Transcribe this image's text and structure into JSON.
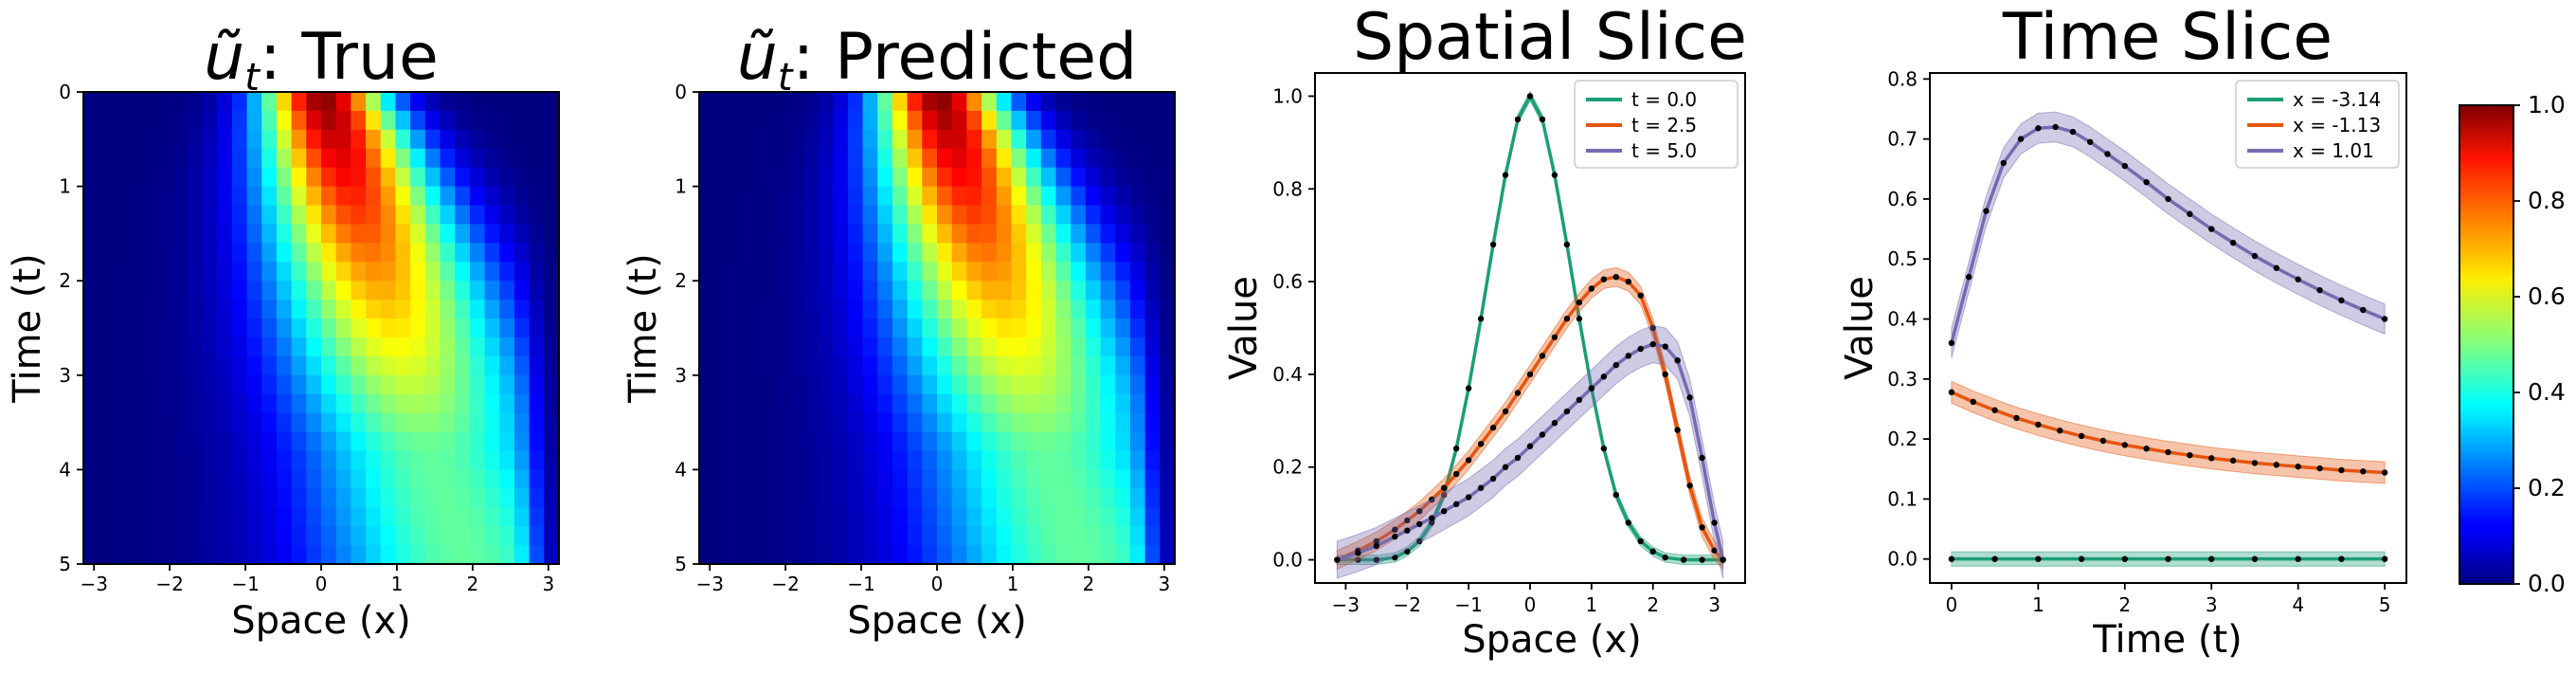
{
  "chart_data": [
    {
      "type": "heatmap",
      "title_symbol": "ũ",
      "title_sub": "t",
      "title_suffix": ": True",
      "xlabel": "Space (x)",
      "ylabel": "Time (t)",
      "xlim": [
        -3.14,
        3.14
      ],
      "ylim": [
        0,
        5
      ],
      "xticks": [
        "−3",
        "−2",
        "−1",
        "0",
        "1",
        "2",
        "3"
      ],
      "xtick_values": [
        -3,
        -2,
        -1,
        0,
        1,
        2,
        3
      ],
      "yticks": [
        "0",
        "1",
        "2",
        "3",
        "4",
        "5"
      ],
      "ytick_values": [
        0,
        1,
        2,
        3,
        4,
        5
      ],
      "grid_cols": 32,
      "grid_rows": 25,
      "colormap": "jet",
      "peak_value": 1.0
    },
    {
      "type": "heatmap",
      "title_symbol": "ũ",
      "title_sub": "t",
      "title_suffix": ": Predicted",
      "xlabel": "Space (x)",
      "ylabel": "Time (t)",
      "xlim": [
        -3.14,
        3.14
      ],
      "ylim": [
        0,
        5
      ],
      "xticks": [
        "−3",
        "−2",
        "−1",
        "0",
        "1",
        "2",
        "3"
      ],
      "xtick_values": [
        -3,
        -2,
        -1,
        0,
        1,
        2,
        3
      ],
      "yticks": [
        "0",
        "1",
        "2",
        "3",
        "4",
        "5"
      ],
      "ytick_values": [
        0,
        1,
        2,
        3,
        4,
        5
      ],
      "grid_cols": 32,
      "grid_rows": 25,
      "colormap": "jet",
      "peak_value": 1.0
    },
    {
      "type": "line",
      "title": "Spatial Slice",
      "xlabel": "Space (x)",
      "ylabel": "Value",
      "xlim": [
        -3.5,
        3.5
      ],
      "ylim": [
        -0.05,
        1.05
      ],
      "xticks": [
        "−3",
        "−2",
        "−1",
        "0",
        "1",
        "2",
        "3"
      ],
      "xtick_values": [
        -3,
        -2,
        -1,
        0,
        1,
        2,
        3
      ],
      "yticks": [
        "0.0",
        "0.2",
        "0.4",
        "0.6",
        "0.8",
        "1.0"
      ],
      "ytick_values": [
        0,
        0.2,
        0.4,
        0.6,
        0.8,
        1.0
      ],
      "legend_position": "top-right",
      "series": [
        {
          "name": "t = 0.0",
          "color": "#1b9e77",
          "band": 0.01,
          "x": [
            -3.14,
            -2.8,
            -2.5,
            -2.2,
            -2.0,
            -1.8,
            -1.6,
            -1.4,
            -1.2,
            -1.0,
            -0.8,
            -0.6,
            -0.4,
            -0.2,
            0.0,
            0.2,
            0.4,
            0.6,
            0.8,
            1.0,
            1.2,
            1.4,
            1.6,
            1.8,
            2.0,
            2.2,
            2.5,
            2.8,
            3.14
          ],
          "y": [
            0.0,
            0.0,
            0.0,
            0.005,
            0.018,
            0.04,
            0.08,
            0.14,
            0.24,
            0.37,
            0.52,
            0.68,
            0.83,
            0.95,
            1.0,
            0.95,
            0.83,
            0.68,
            0.52,
            0.37,
            0.24,
            0.14,
            0.08,
            0.04,
            0.018,
            0.005,
            0.0,
            0.0,
            0.0
          ]
        },
        {
          "name": "t = 2.5",
          "color": "#e6550d",
          "band": 0.02,
          "x": [
            -3.14,
            -2.8,
            -2.5,
            -2.2,
            -2.0,
            -1.8,
            -1.6,
            -1.4,
            -1.2,
            -1.0,
            -0.8,
            -0.6,
            -0.4,
            -0.2,
            0.0,
            0.2,
            0.4,
            0.6,
            0.8,
            1.0,
            1.2,
            1.4,
            1.6,
            1.8,
            2.0,
            2.2,
            2.4,
            2.6,
            2.8,
            3.0,
            3.14
          ],
          "y": [
            0.0,
            0.02,
            0.04,
            0.065,
            0.085,
            0.105,
            0.13,
            0.155,
            0.185,
            0.215,
            0.25,
            0.285,
            0.32,
            0.36,
            0.4,
            0.44,
            0.48,
            0.52,
            0.555,
            0.585,
            0.605,
            0.61,
            0.6,
            0.57,
            0.5,
            0.4,
            0.28,
            0.16,
            0.07,
            0.02,
            0.0
          ]
        },
        {
          "name": "t = 5.0",
          "color": "#756bb1",
          "band": 0.04,
          "x": [
            -3.14,
            -2.8,
            -2.5,
            -2.2,
            -2.0,
            -1.8,
            -1.6,
            -1.4,
            -1.2,
            -1.0,
            -0.8,
            -0.6,
            -0.4,
            -0.2,
            0.0,
            0.2,
            0.4,
            0.6,
            0.8,
            1.0,
            1.2,
            1.4,
            1.6,
            1.8,
            2.0,
            2.2,
            2.4,
            2.6,
            2.8,
            3.0,
            3.14
          ],
          "y": [
            0.0,
            0.015,
            0.03,
            0.05,
            0.063,
            0.077,
            0.09,
            0.105,
            0.12,
            0.135,
            0.155,
            0.175,
            0.2,
            0.22,
            0.245,
            0.27,
            0.295,
            0.32,
            0.345,
            0.37,
            0.395,
            0.42,
            0.44,
            0.455,
            0.465,
            0.46,
            0.43,
            0.35,
            0.22,
            0.08,
            0.0
          ]
        }
      ]
    },
    {
      "type": "line",
      "title": "Time Slice",
      "xlabel": "Time (t)",
      "ylabel": "Value",
      "xlim": [
        -0.25,
        5.25
      ],
      "ylim": [
        -0.04,
        0.81
      ],
      "xticks": [
        "0",
        "1",
        "2",
        "3",
        "4",
        "5"
      ],
      "xtick_values": [
        0,
        1,
        2,
        3,
        4,
        5
      ],
      "yticks": [
        "0.0",
        "0.1",
        "0.2",
        "0.3",
        "0.4",
        "0.5",
        "0.6",
        "0.7",
        "0.8"
      ],
      "ytick_values": [
        0,
        0.1,
        0.2,
        0.3,
        0.4,
        0.5,
        0.6,
        0.7,
        0.8
      ],
      "legend_position": "top-right",
      "series": [
        {
          "name": "x = -3.14",
          "color": "#1b9e77",
          "band": 0.012,
          "x": [
            0,
            0.5,
            1,
            1.5,
            2,
            2.5,
            3,
            3.5,
            4,
            4.5,
            5
          ],
          "y": [
            0.0,
            0.0,
            0.0,
            0.0,
            0.0,
            0.0,
            0.0,
            0.0,
            0.0,
            0.0,
            0.0
          ]
        },
        {
          "name": "x = -1.13",
          "color": "#e6550d",
          "band": 0.018,
          "x": [
            0,
            0.25,
            0.5,
            0.75,
            1.0,
            1.25,
            1.5,
            1.75,
            2.0,
            2.25,
            2.5,
            2.75,
            3.0,
            3.25,
            3.5,
            3.75,
            4.0,
            4.25,
            4.5,
            4.75,
            5.0
          ],
          "y": [
            0.278,
            0.262,
            0.248,
            0.235,
            0.224,
            0.214,
            0.205,
            0.197,
            0.19,
            0.184,
            0.178,
            0.173,
            0.168,
            0.164,
            0.16,
            0.157,
            0.154,
            0.151,
            0.148,
            0.146,
            0.144
          ]
        },
        {
          "name": "x = 1.01",
          "color": "#756bb1",
          "band": 0.025,
          "x": [
            0,
            0.2,
            0.4,
            0.6,
            0.8,
            1.0,
            1.2,
            1.4,
            1.6,
            1.8,
            2.0,
            2.25,
            2.5,
            2.75,
            3.0,
            3.25,
            3.5,
            3.75,
            4.0,
            4.25,
            4.5,
            4.75,
            5.0
          ],
          "y": [
            0.36,
            0.47,
            0.58,
            0.66,
            0.7,
            0.718,
            0.72,
            0.712,
            0.695,
            0.675,
            0.655,
            0.628,
            0.6,
            0.575,
            0.55,
            0.527,
            0.505,
            0.485,
            0.466,
            0.448,
            0.431,
            0.415,
            0.4
          ]
        }
      ]
    }
  ],
  "colorbar": {
    "ticks": [
      "0.0",
      "0.2",
      "0.4",
      "0.6",
      "0.8",
      "1.0"
    ],
    "tick_values": [
      0,
      0.2,
      0.4,
      0.6,
      0.8,
      1.0
    ],
    "colormap": "jet"
  }
}
